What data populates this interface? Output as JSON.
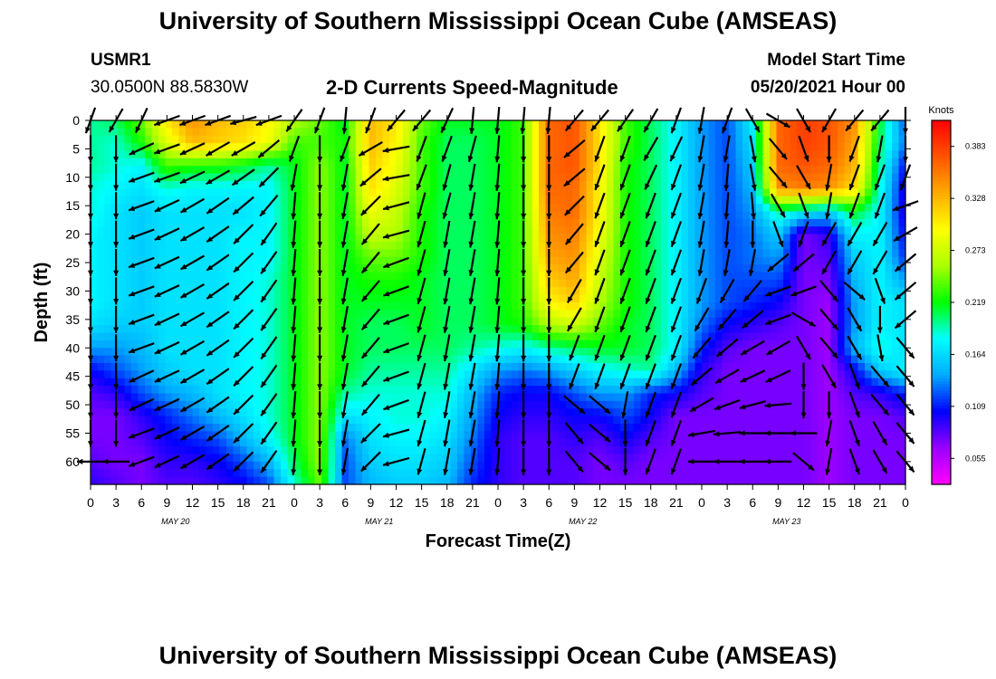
{
  "header": {
    "title": "University of Southern Mississippi Ocean Cube (AMSEAS)",
    "footer_title": "University of Southern Mississippi Ocean Cube (AMSEAS)",
    "station_id": "USMR1",
    "location": "30.0500N  88.5830W",
    "product": "2-D Currents Speed-Magnitude",
    "model_start_label": "Model Start Time",
    "model_start_value": "05/20/2021 Hour 00"
  },
  "chart_data": {
    "type": "heatmap",
    "title": "2-D Currents Speed-Magnitude",
    "xlabel": "Forecast Time(Z)",
    "ylabel": "Depth (ft)",
    "x_tick_labels": [
      "0",
      "3",
      "6",
      "9",
      "12",
      "15",
      "18",
      "21",
      "0",
      "3",
      "6",
      "9",
      "12",
      "15",
      "18",
      "21",
      "0",
      "3",
      "6",
      "9",
      "12",
      "15",
      "18",
      "21",
      "0",
      "3",
      "6",
      "9",
      "12",
      "15",
      "18",
      "21",
      "0"
    ],
    "date_labels": [
      "MAY 20",
      "MAY 21",
      "MAY 22",
      "MAY 23"
    ],
    "y_ticks": [
      0,
      5,
      10,
      15,
      20,
      25,
      30,
      35,
      40,
      45,
      50,
      55,
      60
    ],
    "ylim": [
      64,
      0
    ],
    "x_range_hours": [
      0,
      96
    ],
    "colorbar": {
      "unit": "Knots",
      "tick_labels": [
        "0.383",
        "0.328",
        "0.273",
        "0.219",
        "0.164",
        "0.109",
        "0.055"
      ],
      "range": [
        0.0,
        0.41
      ],
      "colors": [
        "#ff00ff",
        "#9900ff",
        "#0000ff",
        "#00aaff",
        "#00ffff",
        "#00ff00",
        "#aaff00",
        "#ffff00",
        "#ffaa00",
        "#ff5500",
        "#ff0000"
      ]
    },
    "depths_ft": [
      0,
      4,
      8,
      12,
      16,
      20,
      24,
      28,
      32,
      36,
      40,
      44,
      48,
      52,
      56,
      60,
      64
    ],
    "speed_grid": {
      "hours": [
        0,
        3,
        6,
        9,
        12,
        15,
        18,
        21,
        24,
        27,
        30,
        33,
        36,
        39,
        42,
        45,
        48,
        51,
        54,
        57,
        60,
        63,
        66,
        69,
        72,
        75,
        78,
        81,
        84,
        87,
        90,
        93,
        96
      ],
      "rows": [
        [
          0.18,
          0.19,
          0.23,
          0.3,
          0.34,
          0.32,
          0.31,
          0.29,
          0.25,
          0.23,
          0.2,
          0.32,
          0.3,
          0.23,
          0.2,
          0.2,
          0.2,
          0.22,
          0.36,
          0.37,
          0.3,
          0.22,
          0.19,
          0.16,
          0.12,
          0.1,
          0.16,
          0.36,
          0.38,
          0.37,
          0.34,
          0.2,
          0.1
        ],
        [
          0.18,
          0.17,
          0.21,
          0.27,
          0.32,
          0.31,
          0.3,
          0.28,
          0.22,
          0.22,
          0.21,
          0.32,
          0.29,
          0.22,
          0.19,
          0.19,
          0.2,
          0.22,
          0.36,
          0.37,
          0.3,
          0.22,
          0.19,
          0.16,
          0.12,
          0.1,
          0.15,
          0.36,
          0.38,
          0.37,
          0.33,
          0.19,
          0.11
        ],
        [
          0.18,
          0.17,
          0.16,
          0.22,
          0.21,
          0.21,
          0.2,
          0.18,
          0.2,
          0.24,
          0.2,
          0.31,
          0.28,
          0.22,
          0.19,
          0.19,
          0.2,
          0.22,
          0.36,
          0.37,
          0.3,
          0.21,
          0.19,
          0.16,
          0.12,
          0.1,
          0.14,
          0.36,
          0.37,
          0.36,
          0.32,
          0.18,
          0.08
        ],
        [
          0.17,
          0.16,
          0.15,
          0.17,
          0.16,
          0.16,
          0.16,
          0.16,
          0.2,
          0.24,
          0.2,
          0.3,
          0.27,
          0.22,
          0.19,
          0.19,
          0.2,
          0.22,
          0.36,
          0.36,
          0.29,
          0.21,
          0.19,
          0.16,
          0.12,
          0.1,
          0.13,
          0.34,
          0.35,
          0.34,
          0.3,
          0.17,
          0.07
        ],
        [
          0.17,
          0.15,
          0.14,
          0.15,
          0.15,
          0.15,
          0.15,
          0.16,
          0.2,
          0.24,
          0.2,
          0.28,
          0.26,
          0.21,
          0.19,
          0.19,
          0.2,
          0.22,
          0.35,
          0.36,
          0.29,
          0.21,
          0.19,
          0.16,
          0.12,
          0.1,
          0.12,
          0.18,
          0.16,
          0.14,
          0.2,
          0.16,
          0.07
        ],
        [
          0.16,
          0.15,
          0.14,
          0.15,
          0.15,
          0.15,
          0.16,
          0.16,
          0.2,
          0.24,
          0.2,
          0.26,
          0.25,
          0.21,
          0.19,
          0.19,
          0.2,
          0.22,
          0.34,
          0.35,
          0.28,
          0.21,
          0.19,
          0.16,
          0.12,
          0.1,
          0.11,
          0.14,
          0.05,
          0.07,
          0.16,
          0.16,
          0.08
        ],
        [
          0.16,
          0.15,
          0.14,
          0.15,
          0.15,
          0.15,
          0.16,
          0.16,
          0.2,
          0.24,
          0.2,
          0.23,
          0.23,
          0.21,
          0.19,
          0.19,
          0.2,
          0.22,
          0.33,
          0.34,
          0.27,
          0.21,
          0.19,
          0.16,
          0.12,
          0.1,
          0.11,
          0.12,
          0.05,
          0.06,
          0.14,
          0.16,
          0.09
        ],
        [
          0.16,
          0.15,
          0.14,
          0.15,
          0.15,
          0.15,
          0.16,
          0.17,
          0.2,
          0.24,
          0.2,
          0.21,
          0.21,
          0.2,
          0.19,
          0.19,
          0.2,
          0.22,
          0.31,
          0.33,
          0.26,
          0.21,
          0.19,
          0.16,
          0.12,
          0.1,
          0.1,
          0.1,
          0.05,
          0.05,
          0.13,
          0.16,
          0.12
        ],
        [
          0.16,
          0.15,
          0.14,
          0.15,
          0.15,
          0.15,
          0.16,
          0.17,
          0.2,
          0.24,
          0.2,
          0.2,
          0.2,
          0.2,
          0.19,
          0.19,
          0.2,
          0.22,
          0.29,
          0.31,
          0.25,
          0.21,
          0.19,
          0.16,
          0.12,
          0.1,
          0.09,
          0.08,
          0.05,
          0.04,
          0.12,
          0.16,
          0.15
        ],
        [
          0.15,
          0.14,
          0.14,
          0.15,
          0.15,
          0.15,
          0.16,
          0.17,
          0.2,
          0.24,
          0.2,
          0.19,
          0.19,
          0.2,
          0.19,
          0.19,
          0.2,
          0.21,
          0.25,
          0.26,
          0.23,
          0.2,
          0.19,
          0.16,
          0.11,
          0.08,
          0.07,
          0.06,
          0.05,
          0.04,
          0.12,
          0.16,
          0.15
        ],
        [
          0.12,
          0.12,
          0.13,
          0.15,
          0.15,
          0.15,
          0.16,
          0.17,
          0.2,
          0.24,
          0.2,
          0.19,
          0.19,
          0.19,
          0.19,
          0.18,
          0.17,
          0.16,
          0.18,
          0.19,
          0.2,
          0.2,
          0.19,
          0.16,
          0.09,
          0.06,
          0.05,
          0.05,
          0.05,
          0.04,
          0.13,
          0.17,
          0.15
        ],
        [
          0.08,
          0.1,
          0.12,
          0.14,
          0.15,
          0.15,
          0.16,
          0.17,
          0.2,
          0.24,
          0.2,
          0.18,
          0.18,
          0.18,
          0.18,
          0.15,
          0.12,
          0.11,
          0.12,
          0.14,
          0.16,
          0.17,
          0.18,
          0.13,
          0.07,
          0.05,
          0.05,
          0.05,
          0.05,
          0.04,
          0.08,
          0.14,
          0.16
        ],
        [
          0.06,
          0.07,
          0.1,
          0.12,
          0.13,
          0.15,
          0.16,
          0.17,
          0.2,
          0.24,
          0.18,
          0.17,
          0.17,
          0.17,
          0.17,
          0.13,
          0.09,
          0.08,
          0.08,
          0.1,
          0.12,
          0.12,
          0.09,
          0.08,
          0.06,
          0.05,
          0.05,
          0.05,
          0.05,
          0.04,
          0.06,
          0.07,
          0.09
        ],
        [
          0.05,
          0.05,
          0.07,
          0.09,
          0.11,
          0.13,
          0.15,
          0.17,
          0.2,
          0.24,
          0.15,
          0.16,
          0.17,
          0.17,
          0.16,
          0.12,
          0.08,
          0.07,
          0.07,
          0.08,
          0.08,
          0.1,
          0.08,
          0.05,
          0.05,
          0.05,
          0.05,
          0.05,
          0.05,
          0.04,
          0.05,
          0.05,
          0.06
        ],
        [
          0.05,
          0.05,
          0.06,
          0.08,
          0.09,
          0.1,
          0.13,
          0.16,
          0.2,
          0.24,
          0.11,
          0.15,
          0.16,
          0.16,
          0.15,
          0.11,
          0.07,
          0.06,
          0.06,
          0.07,
          0.06,
          0.08,
          0.06,
          0.05,
          0.05,
          0.05,
          0.05,
          0.05,
          0.05,
          0.04,
          0.05,
          0.05,
          0.05
        ],
        [
          0.06,
          0.05,
          0.05,
          0.07,
          0.07,
          0.08,
          0.1,
          0.13,
          0.19,
          0.24,
          0.1,
          0.14,
          0.15,
          0.15,
          0.14,
          0.1,
          0.07,
          0.06,
          0.06,
          0.06,
          0.05,
          0.06,
          0.05,
          0.05,
          0.05,
          0.05,
          0.05,
          0.05,
          0.05,
          0.04,
          0.05,
          0.05,
          0.05
        ],
        [
          0.07,
          0.06,
          0.05,
          0.06,
          0.06,
          0.07,
          0.08,
          0.1,
          0.17,
          0.23,
          0.1,
          0.13,
          0.14,
          0.14,
          0.13,
          0.09,
          0.07,
          0.06,
          0.06,
          0.06,
          0.05,
          0.05,
          0.05,
          0.05,
          0.05,
          0.05,
          0.05,
          0.05,
          0.05,
          0.04,
          0.05,
          0.05,
          0.05
        ]
      ]
    },
    "vector_field": {
      "x_hours": [
        0,
        3,
        6,
        9,
        12,
        15,
        18,
        21,
        24,
        27,
        30,
        33,
        36,
        39,
        42,
        45,
        48,
        51,
        54,
        57,
        60,
        63,
        66,
        69,
        72,
        75,
        78,
        81,
        84,
        87,
        90,
        93,
        96
      ],
      "depths_ft": [
        0,
        5,
        10,
        15,
        20,
        25,
        30,
        35,
        40,
        45,
        50,
        55,
        60
      ],
      "directions_deg": [
        [
          200,
          210,
          205,
          250,
          250,
          250,
          255,
          250,
          215,
          200,
          185,
          200,
          220,
          220,
          205,
          185,
          185,
          185,
          185,
          220,
          220,
          215,
          210,
          200,
          190,
          200,
          150,
          120,
          150,
          210,
          220,
          220,
          180
        ],
        [
          180,
          180,
          245,
          250,
          245,
          240,
          240,
          230,
          200,
          180,
          200,
          240,
          260,
          200,
          200,
          195,
          185,
          180,
          180,
          230,
          200,
          200,
          210,
          205,
          190,
          190,
          170,
          140,
          160,
          180,
          200,
          190,
          180
        ],
        [
          180,
          180,
          250,
          250,
          245,
          240,
          235,
          225,
          190,
          180,
          190,
          230,
          260,
          200,
          195,
          190,
          185,
          180,
          180,
          230,
          200,
          200,
          205,
          200,
          190,
          185,
          170,
          140,
          150,
          190,
          200,
          200,
          200
        ],
        [
          180,
          180,
          250,
          245,
          240,
          235,
          230,
          220,
          185,
          180,
          190,
          225,
          255,
          195,
          195,
          190,
          185,
          180,
          180,
          225,
          200,
          200,
          200,
          200,
          190,
          185,
          175,
          150,
          160,
          190,
          200,
          200,
          250
        ],
        [
          180,
          180,
          250,
          245,
          240,
          235,
          225,
          215,
          185,
          180,
          190,
          220,
          255,
          195,
          190,
          190,
          185,
          180,
          180,
          220,
          200,
          200,
          200,
          200,
          190,
          185,
          180,
          160,
          200,
          210,
          210,
          210,
          240
        ],
        [
          180,
          180,
          250,
          245,
          240,
          235,
          225,
          215,
          185,
          180,
          190,
          220,
          250,
          195,
          190,
          190,
          185,
          180,
          180,
          220,
          200,
          200,
          200,
          200,
          190,
          190,
          190,
          230,
          230,
          210,
          210,
          210,
          230
        ],
        [
          180,
          180,
          250,
          245,
          240,
          235,
          225,
          215,
          185,
          180,
          190,
          220,
          250,
          195,
          190,
          190,
          185,
          180,
          180,
          210,
          200,
          200,
          200,
          200,
          200,
          210,
          220,
          250,
          250,
          140,
          130,
          160,
          230
        ],
        [
          180,
          180,
          250,
          245,
          240,
          235,
          225,
          215,
          185,
          180,
          190,
          220,
          250,
          195,
          190,
          190,
          185,
          180,
          180,
          210,
          200,
          200,
          200,
          200,
          210,
          220,
          230,
          250,
          120,
          140,
          150,
          180,
          230
        ],
        [
          180,
          180,
          250,
          245,
          240,
          235,
          225,
          215,
          185,
          180,
          190,
          220,
          250,
          195,
          190,
          190,
          185,
          180,
          180,
          200,
          200,
          200,
          200,
          200,
          220,
          230,
          240,
          240,
          150,
          140,
          150,
          170,
          140
        ],
        [
          180,
          180,
          245,
          245,
          240,
          235,
          225,
          215,
          185,
          180,
          190,
          220,
          250,
          195,
          190,
          190,
          185,
          180,
          180,
          200,
          200,
          200,
          200,
          200,
          230,
          240,
          245,
          245,
          180,
          150,
          160,
          140,
          140
        ],
        [
          180,
          180,
          245,
          245,
          240,
          235,
          225,
          215,
          185,
          180,
          190,
          220,
          250,
          195,
          190,
          190,
          185,
          180,
          180,
          130,
          130,
          190,
          200,
          200,
          240,
          250,
          255,
          265,
          180,
          180,
          160,
          140,
          140
        ],
        [
          180,
          180,
          250,
          245,
          240,
          235,
          225,
          215,
          185,
          180,
          190,
          225,
          255,
          195,
          190,
          190,
          185,
          180,
          180,
          140,
          130,
          180,
          200,
          200,
          260,
          265,
          270,
          270,
          270,
          190,
          160,
          150,
          140
        ],
        [
          270,
          270,
          250,
          245,
          240,
          235,
          225,
          215,
          185,
          180,
          190,
          225,
          255,
          195,
          190,
          190,
          185,
          180,
          180,
          140,
          130,
          180,
          200,
          200,
          270,
          270,
          270,
          270,
          130,
          190,
          160,
          150,
          140
        ]
      ]
    }
  }
}
